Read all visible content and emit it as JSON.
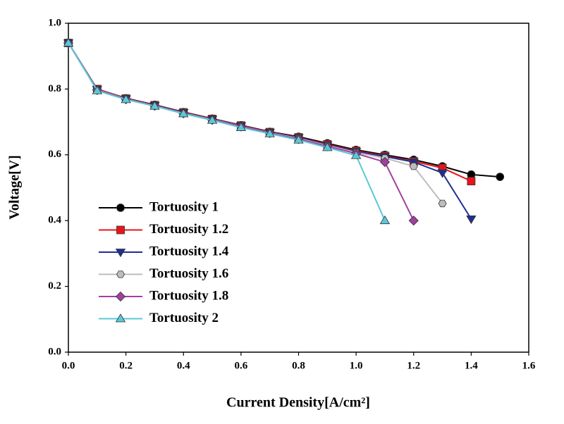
{
  "chart_data": {
    "type": "line",
    "x_label": "Current Density[A/cm²]",
    "y_label": "Voltage[V]",
    "x": [
      0,
      0.1,
      0.2,
      0.3,
      0.4,
      0.5,
      0.6,
      0.7,
      0.8,
      0.9,
      1.0,
      1.1,
      1.2,
      1.3,
      1.4,
      1.5
    ],
    "series": [
      {
        "name": "Tortuosity 1",
        "color": "#000000",
        "marker": "circle",
        "values": [
          0.94,
          0.8,
          0.772,
          0.752,
          0.73,
          0.71,
          0.69,
          0.67,
          0.655,
          0.635,
          0.615,
          0.6,
          0.585,
          0.565,
          0.54,
          0.533
        ]
      },
      {
        "name": "Tortuosity 1.2",
        "color": "#e8141b",
        "marker": "square",
        "values": [
          0.94,
          0.8,
          0.771,
          0.751,
          0.729,
          0.709,
          0.689,
          0.669,
          0.653,
          0.632,
          0.612,
          0.597,
          0.58,
          0.56,
          0.52,
          null
        ]
      },
      {
        "name": "Tortuosity 1.4",
        "color": "#1f2f8f",
        "marker": "triangle-down",
        "values": [
          0.94,
          0.799,
          0.77,
          0.75,
          0.728,
          0.708,
          0.688,
          0.668,
          0.652,
          0.63,
          0.61,
          0.595,
          0.578,
          0.545,
          0.405,
          null
        ]
      },
      {
        "name": "Tortuosity 1.6",
        "color": "#bdbdbd",
        "marker": "hexagon",
        "values": [
          0.94,
          0.798,
          0.77,
          0.749,
          0.727,
          0.707,
          0.687,
          0.667,
          0.65,
          0.628,
          0.607,
          0.59,
          0.565,
          0.452,
          null,
          null
        ]
      },
      {
        "name": "Tortuosity 1.8",
        "color": "#a040a0",
        "marker": "diamond",
        "values": [
          0.94,
          0.797,
          0.769,
          0.749,
          0.726,
          0.706,
          0.686,
          0.666,
          0.648,
          0.626,
          0.604,
          0.578,
          0.4,
          null,
          null,
          null
        ]
      },
      {
        "name": "Tortuosity 2",
        "color": "#5bc8d8",
        "marker": "triangle-up",
        "values": [
          0.94,
          0.795,
          0.768,
          0.748,
          0.725,
          0.705,
          0.683,
          0.664,
          0.645,
          0.622,
          0.598,
          0.4,
          null,
          null,
          null,
          null
        ]
      }
    ],
    "xlim": [
      0,
      1.6
    ],
    "xticks": [
      {
        "value": 0,
        "label": "0.0"
      },
      0.2,
      0.4,
      0.6,
      0.8,
      {
        "value": 1,
        "label": "1.0"
      },
      1.2,
      1.4,
      1.6
    ],
    "ylim": [
      0,
      1
    ],
    "yticks": [
      {
        "value": 0,
        "label": "0.0"
      },
      0.2,
      0.4,
      0.6,
      0.8,
      {
        "value": 1,
        "label": "1.0"
      }
    ],
    "legend": "lower-left"
  }
}
